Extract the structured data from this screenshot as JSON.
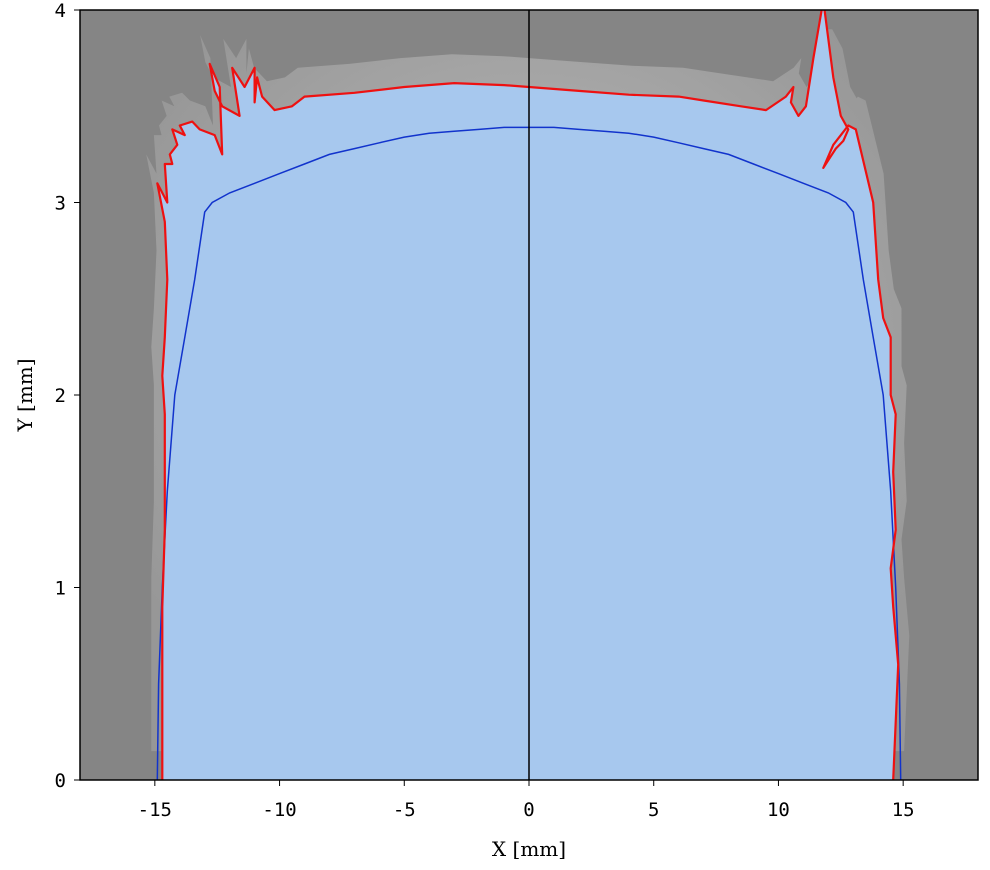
{
  "chart_data": {
    "type": "area",
    "xlabel": "X  [mm]",
    "ylabel": "Y  [mm]",
    "xlim": [
      -18,
      18
    ],
    "ylim": [
      0,
      4
    ],
    "xticks": [
      -15,
      -10,
      -5,
      0,
      5,
      10,
      15
    ],
    "yticks": [
      0,
      1,
      2,
      3,
      4
    ],
    "xtick_labels": [
      "-15",
      "-10",
      "-5",
      "0",
      "5",
      "10",
      "15"
    ],
    "ytick_labels": [
      "0",
      "1",
      "2",
      "3",
      "4"
    ],
    "grid": false,
    "colors": {
      "background_field": "#858585",
      "fill_region": "#a7c8ee",
      "outer_boundary": "#ee1111",
      "inner_profile": "#1133cc",
      "centerline": "#000000"
    },
    "series": [
      {
        "style": "outer-boundary",
        "x": [
          -14.7,
          -14.7,
          -14.6,
          -14.6,
          -14.7,
          -14.6,
          -14.5,
          -14.6,
          -14.9,
          -14.5,
          -14.6,
          -14.3,
          -14.4,
          -14.1,
          -14.3,
          -13.8,
          -14.0,
          -13.5,
          -13.2,
          -12.6,
          -12.3,
          -12.4,
          -12.8,
          -12.6,
          -12.3,
          -11.6,
          -11.9,
          -11.4,
          -11.0,
          -11.0,
          -10.9,
          -10.7,
          -10.2,
          -9.5,
          -9.0,
          -7.0,
          -5.0,
          -3.0,
          -1.0,
          0.0,
          2.0,
          4.0,
          6.0,
          7.0,
          8.5,
          9.5,
          10.3,
          10.6,
          10.5,
          10.8,
          11.1,
          11.4,
          11.8,
          12.2,
          12.5,
          12.8,
          12.6,
          12.3,
          12.0,
          11.8,
          12.2,
          12.8,
          13.1,
          13.8,
          14.0,
          14.2,
          14.5,
          14.5,
          14.7,
          14.6,
          14.7,
          14.5,
          14.6,
          14.8,
          14.7,
          14.6
        ],
        "y": [
          0.0,
          0.9,
          1.3,
          1.9,
          2.1,
          2.3,
          2.6,
          2.9,
          3.1,
          3.0,
          3.2,
          3.2,
          3.25,
          3.3,
          3.38,
          3.35,
          3.4,
          3.42,
          3.38,
          3.35,
          3.25,
          3.6,
          3.72,
          3.58,
          3.5,
          3.45,
          3.7,
          3.6,
          3.7,
          3.52,
          3.65,
          3.55,
          3.48,
          3.5,
          3.55,
          3.57,
          3.6,
          3.62,
          3.61,
          3.6,
          3.58,
          3.56,
          3.55,
          3.53,
          3.5,
          3.48,
          3.55,
          3.6,
          3.52,
          3.45,
          3.5,
          3.75,
          4.05,
          3.65,
          3.45,
          3.38,
          3.32,
          3.28,
          3.22,
          3.18,
          3.3,
          3.4,
          3.38,
          3.0,
          2.6,
          2.4,
          2.3,
          2.0,
          1.9,
          1.6,
          1.3,
          1.1,
          0.9,
          0.6,
          0.3,
          0.0
        ]
      },
      {
        "style": "inner-profile",
        "x": [
          -14.9,
          -14.85,
          -14.7,
          -14.5,
          -14.2,
          -13.8,
          -13.4,
          -13.0,
          -12.7,
          -12.0,
          -11.0,
          -10.0,
          -9.0,
          -8.0,
          -7.0,
          -6.0,
          -5.0,
          -4.0,
          -3.0,
          -2.0,
          -1.0,
          0.0,
          1.0,
          2.0,
          3.0,
          4.0,
          5.0,
          6.0,
          7.0,
          8.0,
          9.0,
          10.0,
          11.0,
          12.0,
          12.7,
          13.0,
          13.4,
          13.8,
          14.2,
          14.5,
          14.7,
          14.85,
          14.9
        ],
        "y": [
          0.0,
          0.5,
          1.0,
          1.5,
          2.0,
          2.3,
          2.6,
          2.95,
          3.0,
          3.05,
          3.1,
          3.15,
          3.2,
          3.25,
          3.28,
          3.31,
          3.34,
          3.36,
          3.37,
          3.38,
          3.39,
          3.39,
          3.39,
          3.38,
          3.37,
          3.36,
          3.34,
          3.31,
          3.28,
          3.25,
          3.2,
          3.15,
          3.1,
          3.05,
          3.0,
          2.95,
          2.6,
          2.3,
          2.0,
          1.5,
          1.0,
          0.5,
          0.0
        ]
      }
    ],
    "vertical_line_x": 0
  }
}
